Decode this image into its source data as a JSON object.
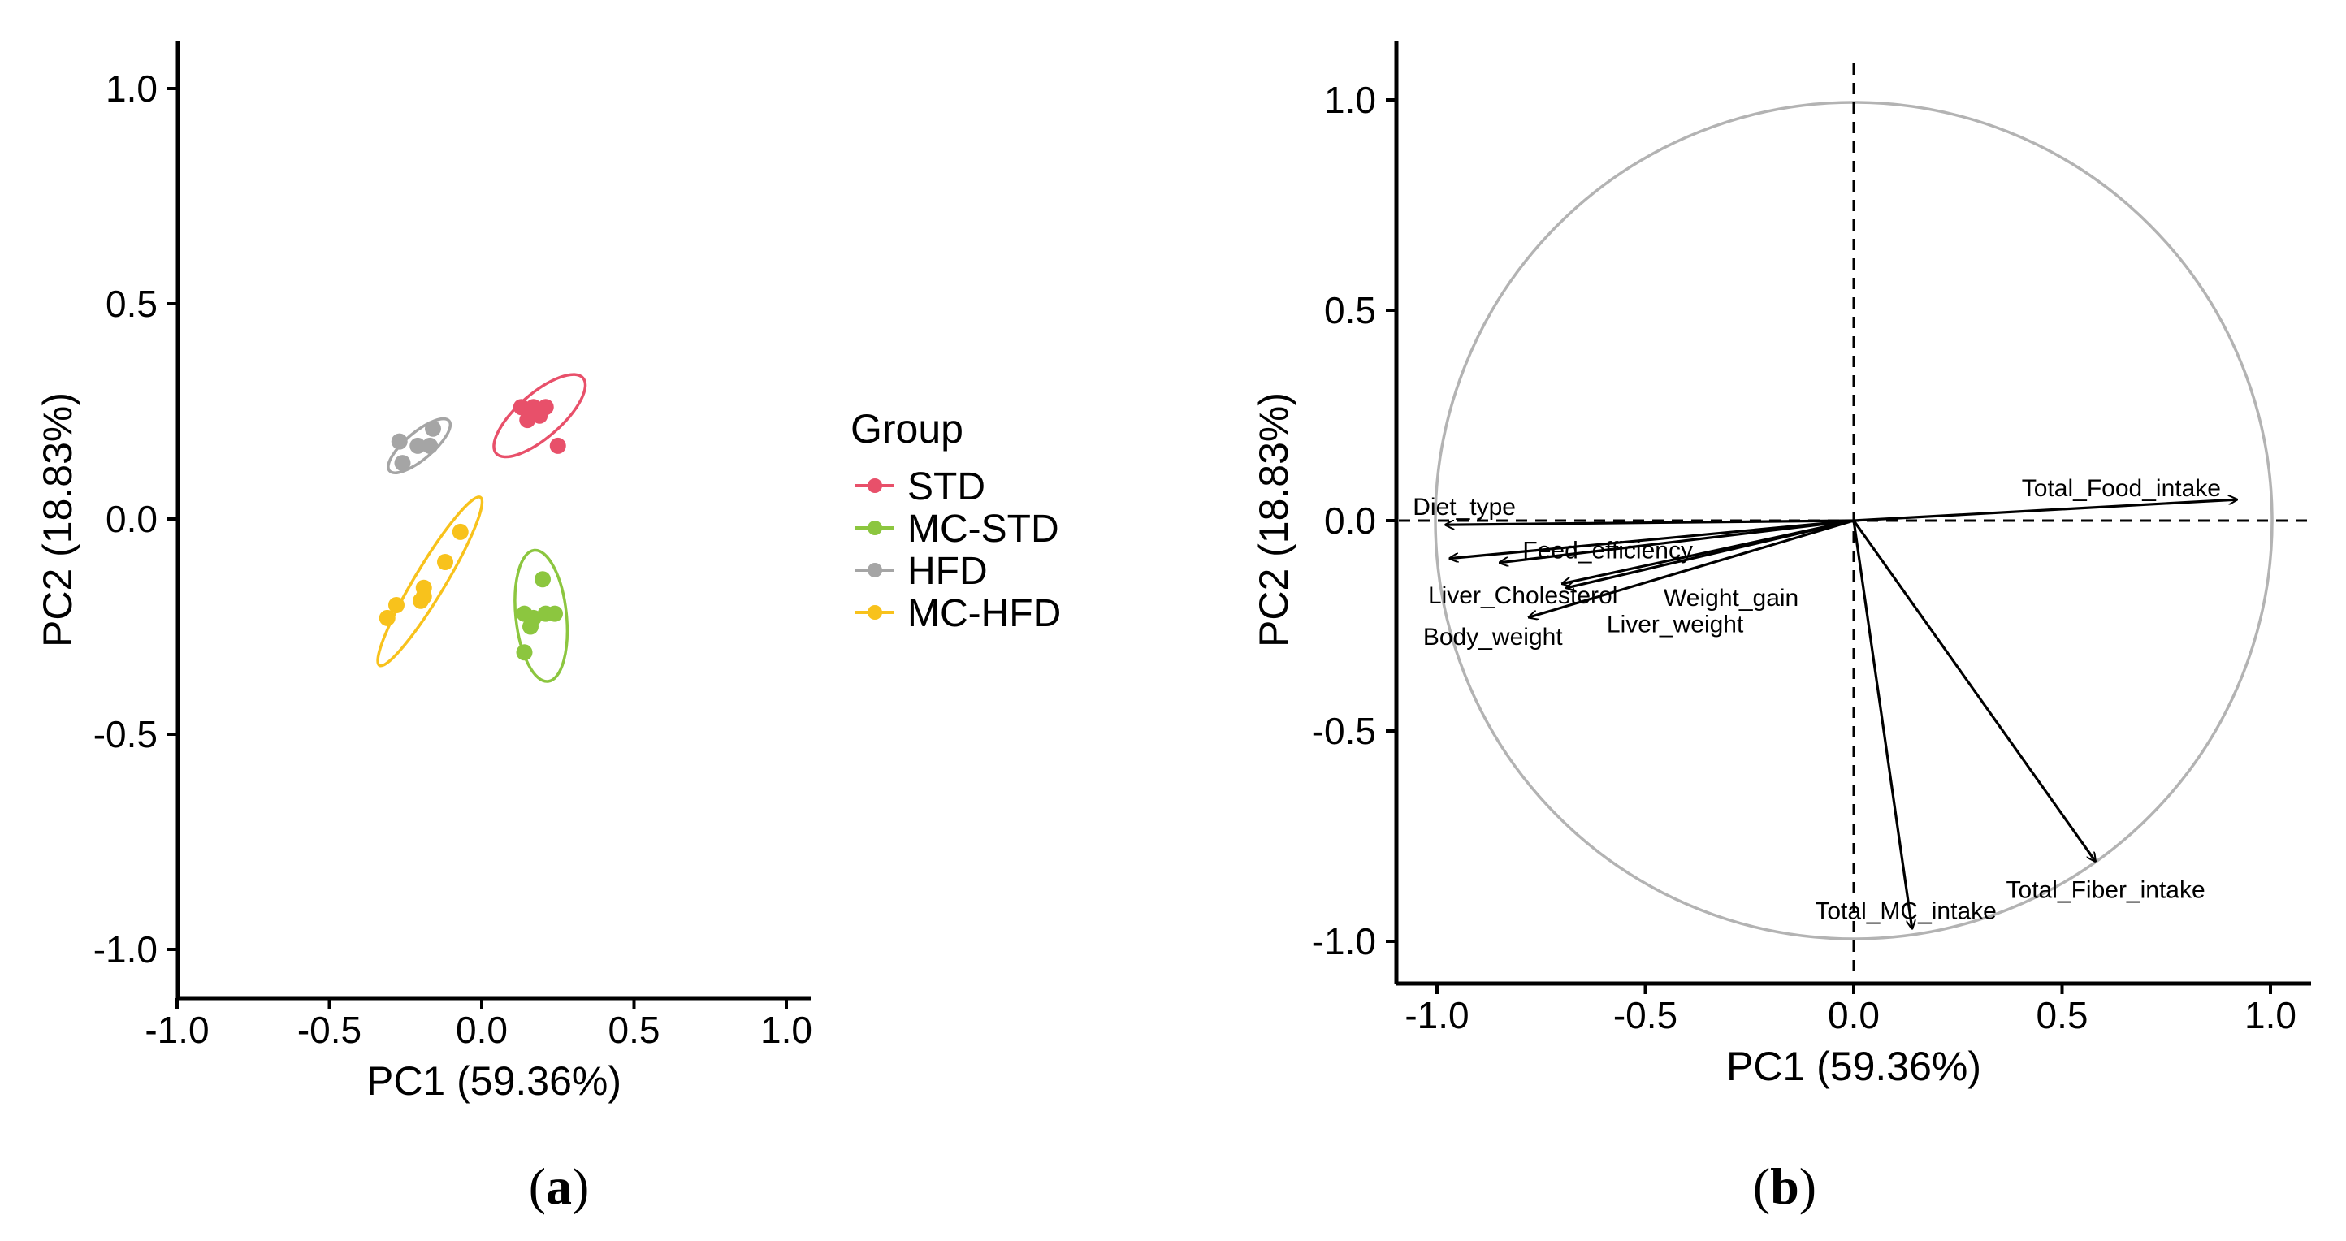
{
  "chart_data": [
    {
      "type": "scatter",
      "panel": "(a)",
      "panel_letter": "a",
      "xlabel": "PC1 (59.36%)",
      "ylabel": "PC2 (18.83%)",
      "xlim": [
        -1.1,
        1.1
      ],
      "ylim": [
        -1.1,
        1.1
      ],
      "xticks": [
        -1.0,
        -0.5,
        0.0,
        0.5,
        1.0
      ],
      "xtick_labels": [
        "-1.0",
        "-0.5",
        "0.0",
        "0.5",
        "1.0"
      ],
      "yticks": [
        -1.0,
        -0.5,
        0.0,
        0.5,
        1.0
      ],
      "ytick_labels": [
        "-1.0",
        "-0.5",
        "0.0",
        "0.5",
        "1.0"
      ],
      "legend": {
        "title": "Group",
        "position": "right"
      },
      "series": [
        {
          "name": "STD",
          "color": "#E8506A",
          "points": [
            [
              0.13,
              0.26
            ],
            [
              0.17,
              0.26
            ],
            [
              0.21,
              0.26
            ],
            [
              0.15,
              0.23
            ],
            [
              0.19,
              0.24
            ],
            [
              0.18,
              0.25
            ],
            [
              0.25,
              0.17
            ]
          ],
          "ellipse": {
            "cx": 0.19,
            "cy": 0.24,
            "rx": 0.17,
            "ry": 0.065,
            "angle": -41
          }
        },
        {
          "name": "MC-STD",
          "color": "#8CC63F",
          "points": [
            [
              0.2,
              -0.14
            ],
            [
              0.14,
              -0.22
            ],
            [
              0.17,
              -0.23
            ],
            [
              0.21,
              -0.22
            ],
            [
              0.24,
              -0.22
            ],
            [
              0.16,
              -0.25
            ],
            [
              0.14,
              -0.31
            ]
          ],
          "ellipse": {
            "cx": 0.195,
            "cy": -0.225,
            "rx": 0.195,
            "ry": 0.075,
            "angle": 84
          }
        },
        {
          "name": "HFD",
          "color": "#A5A5A5",
          "points": [
            [
              -0.16,
              0.21
            ],
            [
              -0.27,
              0.18
            ],
            [
              -0.21,
              0.17
            ],
            [
              -0.17,
              0.17
            ],
            [
              -0.26,
              0.13
            ]
          ],
          "ellipse": {
            "cx": -0.205,
            "cy": 0.17,
            "rx": 0.115,
            "ry": 0.04,
            "angle": -40
          }
        },
        {
          "name": "MC-HFD",
          "color": "#F8C21C",
          "points": [
            [
              -0.07,
              -0.03
            ],
            [
              -0.12,
              -0.1
            ],
            [
              -0.19,
              -0.16
            ],
            [
              -0.28,
              -0.2
            ],
            [
              -0.2,
              -0.19
            ],
            [
              -0.19,
              -0.18
            ],
            [
              -0.31,
              -0.23
            ]
          ],
          "ellipse": {
            "cx": -0.17,
            "cy": -0.145,
            "rx": 0.29,
            "ry": 0.045,
            "angle": -59
          }
        }
      ]
    },
    {
      "type": "biplot",
      "panel": "(b)",
      "panel_letter": "b",
      "xlabel": "PC1 (59.36%)",
      "ylabel": "PC2 (18.83%)",
      "xlim": [
        -1.1,
        1.1
      ],
      "ylim": [
        -1.1,
        1.1
      ],
      "xticks": [
        -1.0,
        -0.5,
        0.0,
        0.5,
        1.0
      ],
      "xtick_labels": [
        "-1.0",
        "-0.5",
        "0.0",
        "0.5",
        "1.0"
      ],
      "yticks": [
        -1.0,
        -0.5,
        0.0,
        0.5,
        1.0
      ],
      "ytick_labels": [
        "-1.0",
        "-0.5",
        "0.0",
        "0.5",
        "1.0"
      ],
      "unit_circle": true,
      "reference_lines": [
        0,
        0
      ],
      "vectors": [
        {
          "name": "Diet_type",
          "x": -0.98,
          "y": -0.01
        },
        {
          "name": "Feed_efficiency",
          "x": -0.97,
          "y": -0.09
        },
        {
          "name": "Liver_Cholesterol",
          "x": -0.85,
          "y": -0.1
        },
        {
          "name": "Weight_gain",
          "x": -0.69,
          "y": -0.16
        },
        {
          "name": "Body_weight",
          "x": -0.78,
          "y": -0.23
        },
        {
          "name": "Liver_weight",
          "x": -0.7,
          "y": -0.15
        },
        {
          "name": "Total_Food_intake",
          "x": 0.92,
          "y": 0.05
        },
        {
          "name": "Total_MC_intake",
          "x": 0.14,
          "y": -0.97
        },
        {
          "name": "Total_Fiber_intake",
          "x": 0.58,
          "y": -0.81
        }
      ]
    }
  ]
}
